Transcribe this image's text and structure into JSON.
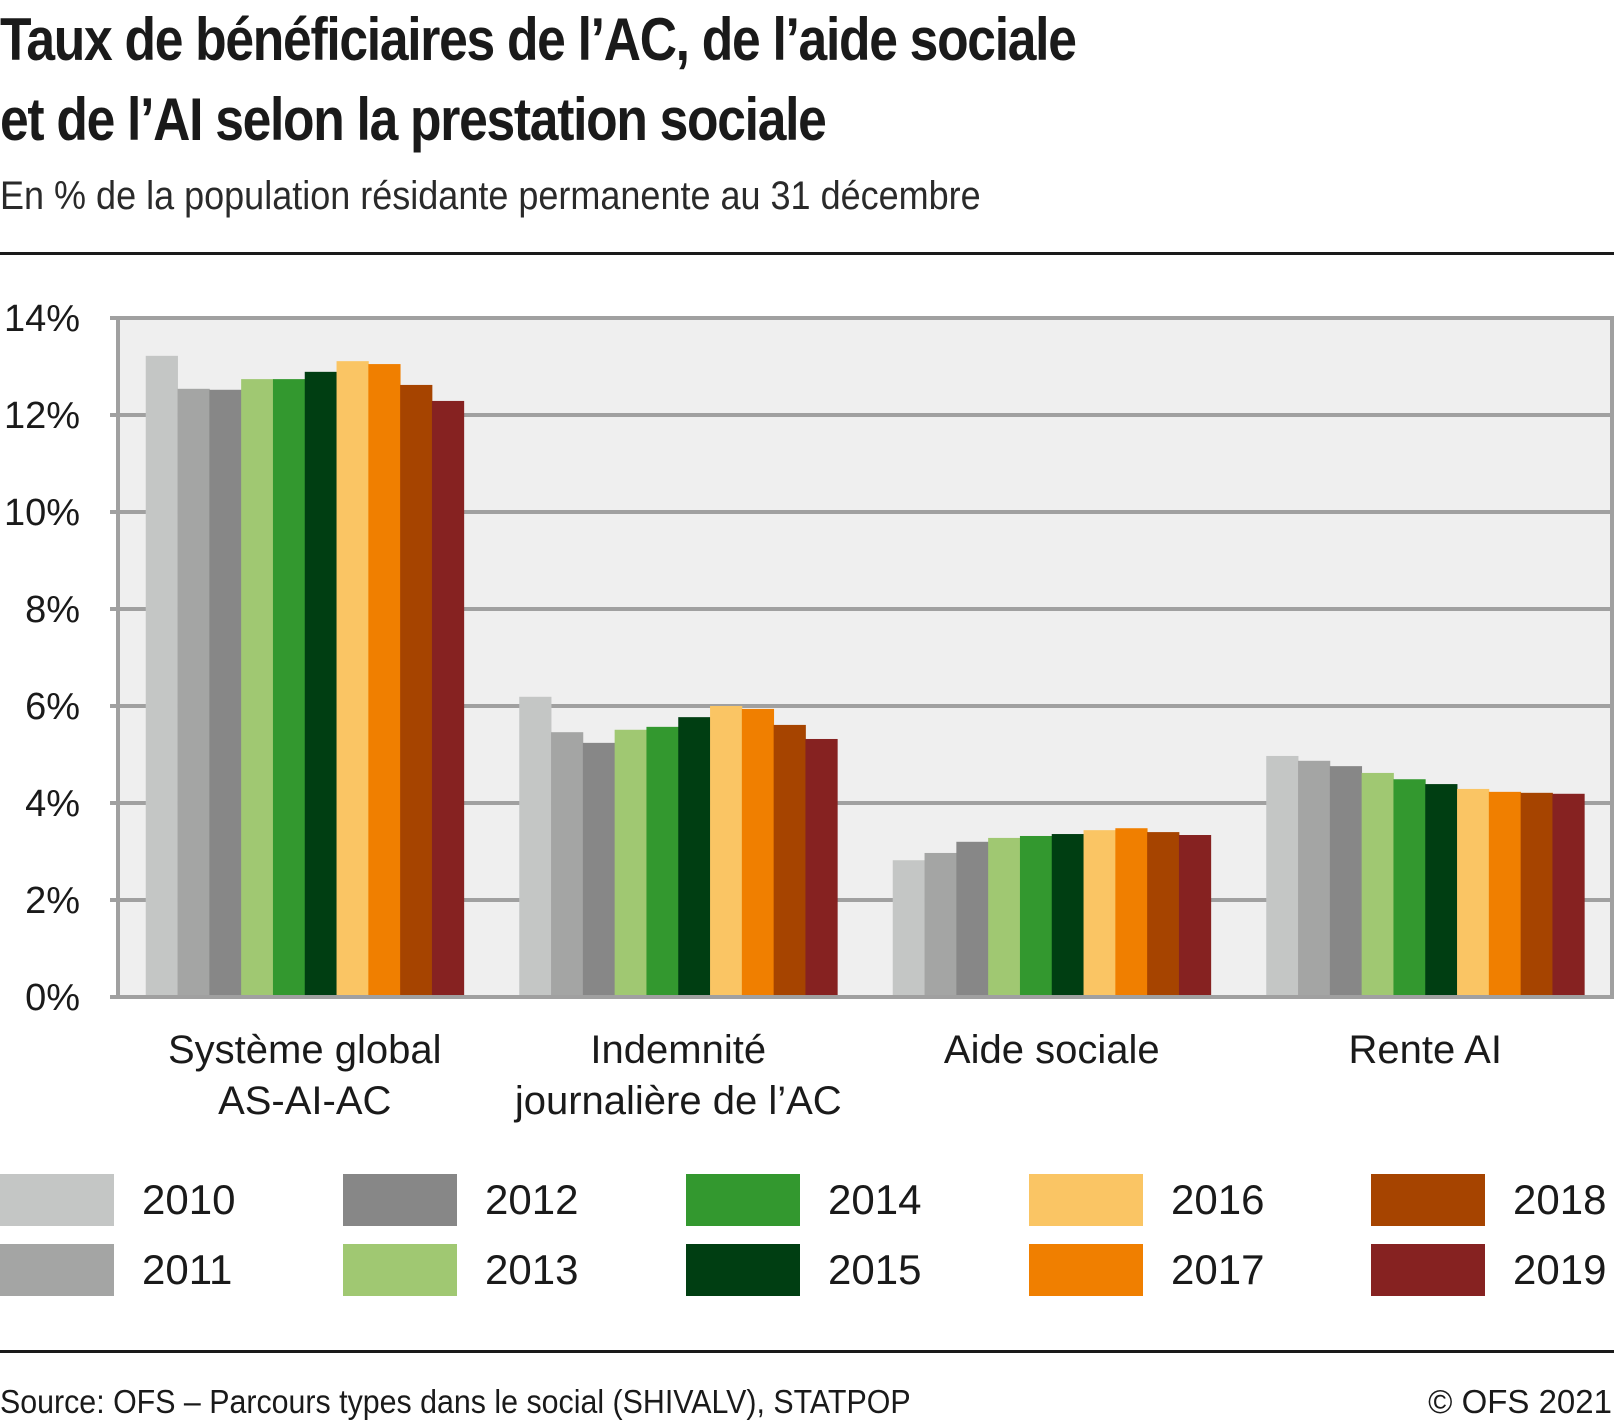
{
  "header": {
    "title_lines": [
      "Taux de bénéficiaires de l’AC, de l’aide sociale",
      "et de l’AI selon la prestation sociale"
    ],
    "subtitle": "En % de la population résidante permanente au 31 décembre"
  },
  "footer": {
    "source": "Source: OFS – Parcours types dans le social (SHIVALV), STATPOP",
    "copyright": "© OFS 2021"
  },
  "chart_data": {
    "type": "bar",
    "title": "Taux de bénéficiaires de l’AC, de l’aide sociale et de l’AI selon la prestation sociale",
    "subtitle": "En % de la population résidante permanente au 31 décembre",
    "xlabel": "",
    "ylabel": "",
    "ylim": [
      0,
      14
    ],
    "y_ticks": [
      0,
      2,
      4,
      6,
      8,
      10,
      12,
      14
    ],
    "y_tick_labels": [
      "0%",
      "2%",
      "4%",
      "6%",
      "8%",
      "10%",
      "12%",
      "14%"
    ],
    "grid": true,
    "legend_position": "bottom",
    "categories": [
      [
        "Système global",
        "AS-AI-AC"
      ],
      [
        "Indemnité",
        "journalière de l’AC"
      ],
      [
        "Aide sociale"
      ],
      [
        "Rente AI"
      ]
    ],
    "series": [
      {
        "name": "2010",
        "color": "#c4c6c5",
        "values": [
          13.22,
          6.19,
          2.82,
          4.97
        ]
      },
      {
        "name": "2011",
        "color": "#a4a5a4",
        "values": [
          12.54,
          5.46,
          2.97,
          4.87
        ]
      },
      {
        "name": "2012",
        "color": "#878787",
        "values": [
          12.52,
          5.24,
          3.2,
          4.76
        ]
      },
      {
        "name": "2013",
        "color": "#a0c872",
        "values": [
          12.74,
          5.51,
          3.28,
          4.62
        ]
      },
      {
        "name": "2014",
        "color": "#33982f",
        "values": [
          12.74,
          5.57,
          3.32,
          4.49
        ]
      },
      {
        "name": "2015",
        "color": "#003e12",
        "values": [
          12.89,
          5.77,
          3.36,
          4.39
        ]
      },
      {
        "name": "2016",
        "color": "#fac564",
        "values": [
          13.11,
          6.0,
          3.44,
          4.29
        ]
      },
      {
        "name": "2017",
        "color": "#f07f00",
        "values": [
          13.05,
          5.94,
          3.48,
          4.23
        ]
      },
      {
        "name": "2018",
        "color": "#a64400",
        "values": [
          12.62,
          5.61,
          3.4,
          4.21
        ]
      },
      {
        "name": "2019",
        "color": "#862221",
        "values": [
          12.29,
          5.32,
          3.34,
          4.19
        ]
      }
    ],
    "colors": {
      "plot_background": "#efefef",
      "gridline": "#a0a0a0"
    }
  }
}
